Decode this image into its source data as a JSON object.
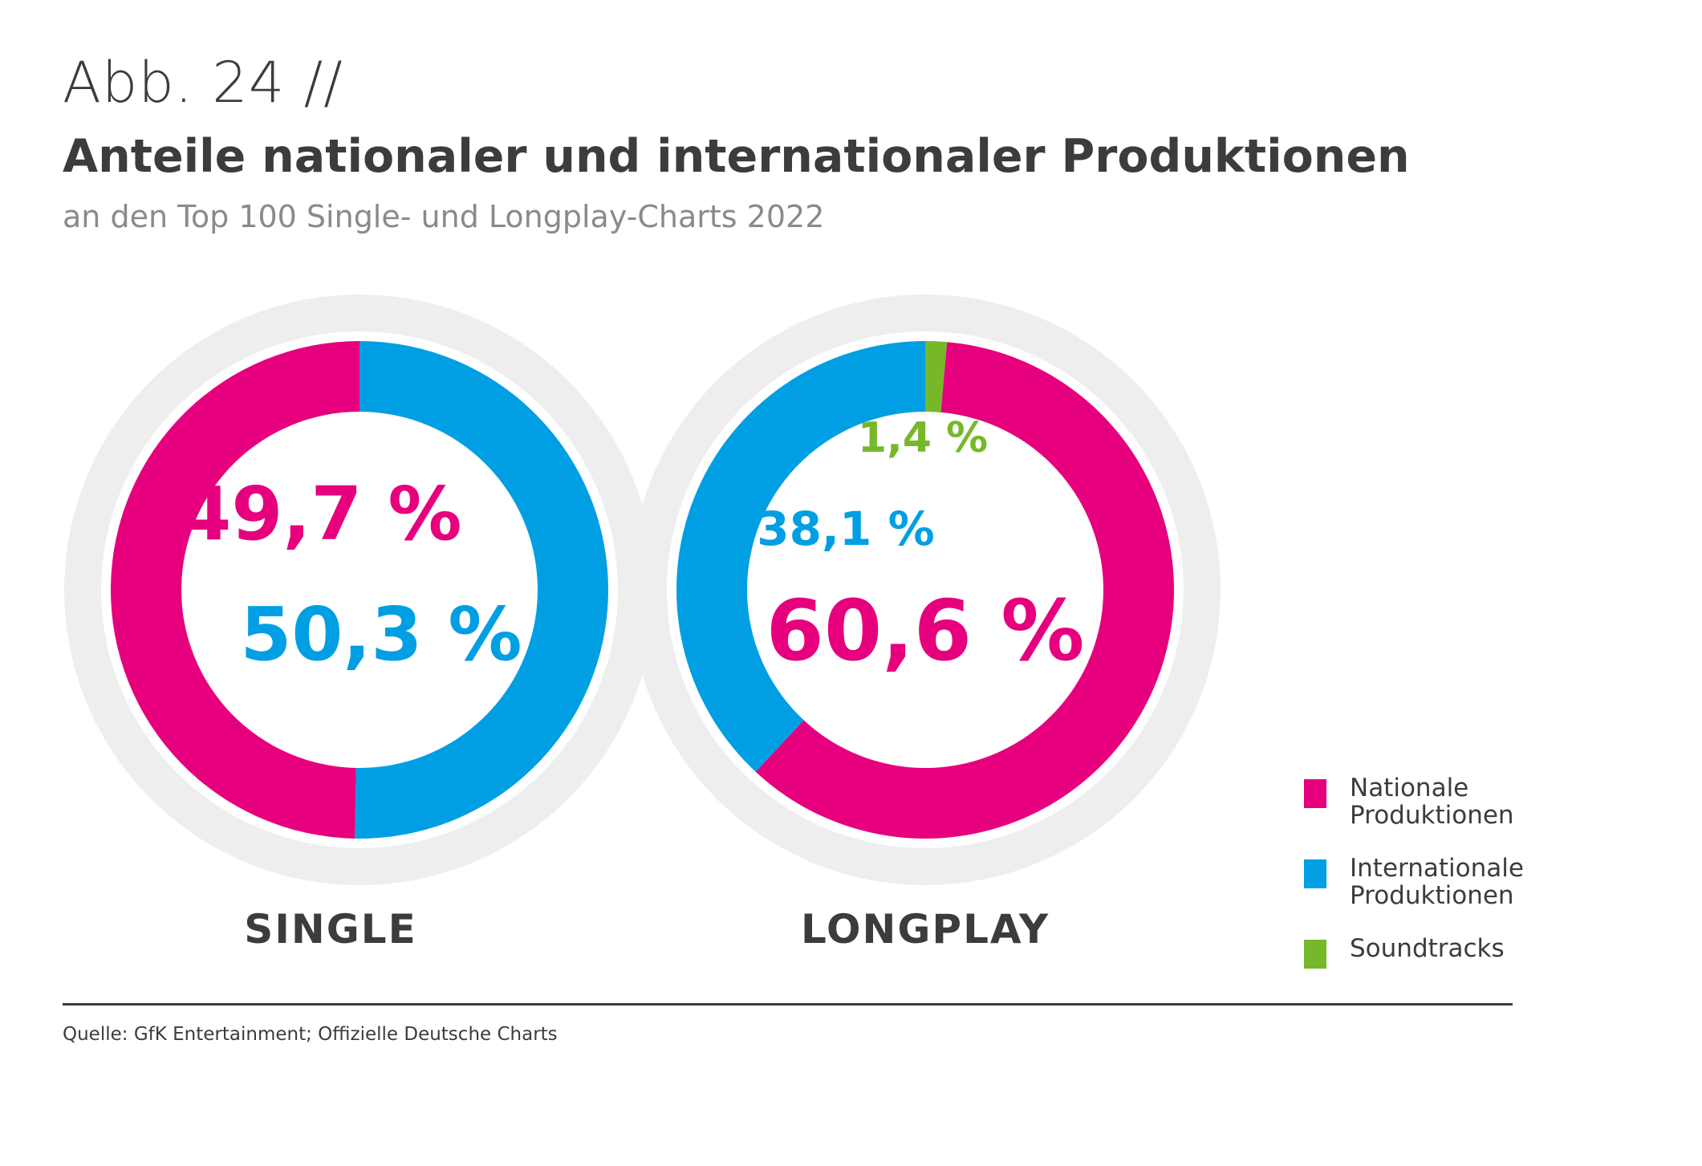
{
  "header": {
    "figure_number": "Abb. 24 //",
    "title": "Anteile nationaler und internationaler Produktionen",
    "subtitle": "an den Top 100 Single- und Longplay-Charts 2022"
  },
  "colors": {
    "national": "#e6007e",
    "international": "#009fe3",
    "soundtracks": "#76b82a",
    "ring_background": "#eeeeee"
  },
  "chart_data": [
    {
      "type": "pie",
      "title": "SINGLE",
      "categories": [
        "Nationale Produktionen",
        "Internationale Produktionen"
      ],
      "values": [
        49.7,
        50.3
      ],
      "labels": [
        "49,7 %",
        "50,3 %"
      ]
    },
    {
      "type": "pie",
      "title": "LONGPLAY",
      "categories": [
        "Soundtracks",
        "Nationale Produktionen",
        "Internationale Produktionen"
      ],
      "values": [
        1.4,
        60.6,
        38.1
      ],
      "labels": [
        "1,4 %",
        "60,6 %",
        "38,1 %"
      ]
    }
  ],
  "legend": {
    "placement": "bottom-right",
    "items": [
      {
        "label": "Nationale Produktionen",
        "color": "#e6007e"
      },
      {
        "label": "Internationale Produktionen",
        "color": "#009fe3"
      },
      {
        "label": "Soundtracks",
        "color": "#76b82a"
      }
    ]
  },
  "source": "Quelle: GfK Entertainment; Offizielle Deutsche Charts"
}
